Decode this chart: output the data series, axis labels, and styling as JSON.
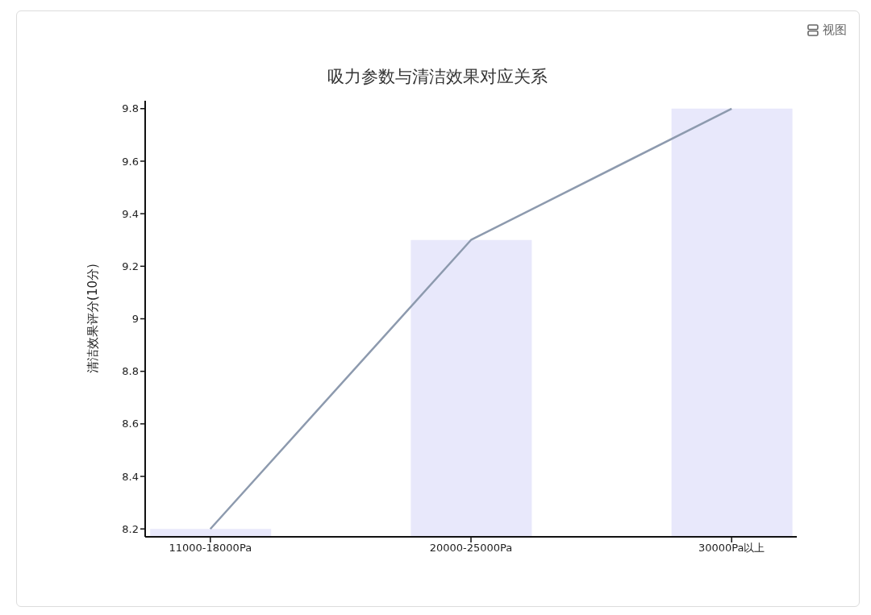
{
  "chart_data": {
    "type": "bar",
    "title": "吸力参数与清洁效果对应关系",
    "ylabel": "清洁效果评分(10分)",
    "categories": [
      "11000-18000Pa",
      "20000-25000Pa",
      "30000Pa以上"
    ],
    "series": [
      {
        "color": "#e8e8fb",
        "values": [
          8.2,
          9.3,
          9.8
        ]
      },
      {
        "type": "line",
        "color": "#8d9aae",
        "values": [
          8.2,
          9.3,
          9.8
        ]
      }
    ],
    "ylim": [
      8.17,
      9.83
    ],
    "yticks": [
      8.2,
      8.4,
      8.6,
      8.8,
      9,
      9.2,
      9.4,
      9.6,
      9.8
    ],
    "marker": "none",
    "line_style": "solid",
    "annotations": [
      "视图"
    ]
  }
}
